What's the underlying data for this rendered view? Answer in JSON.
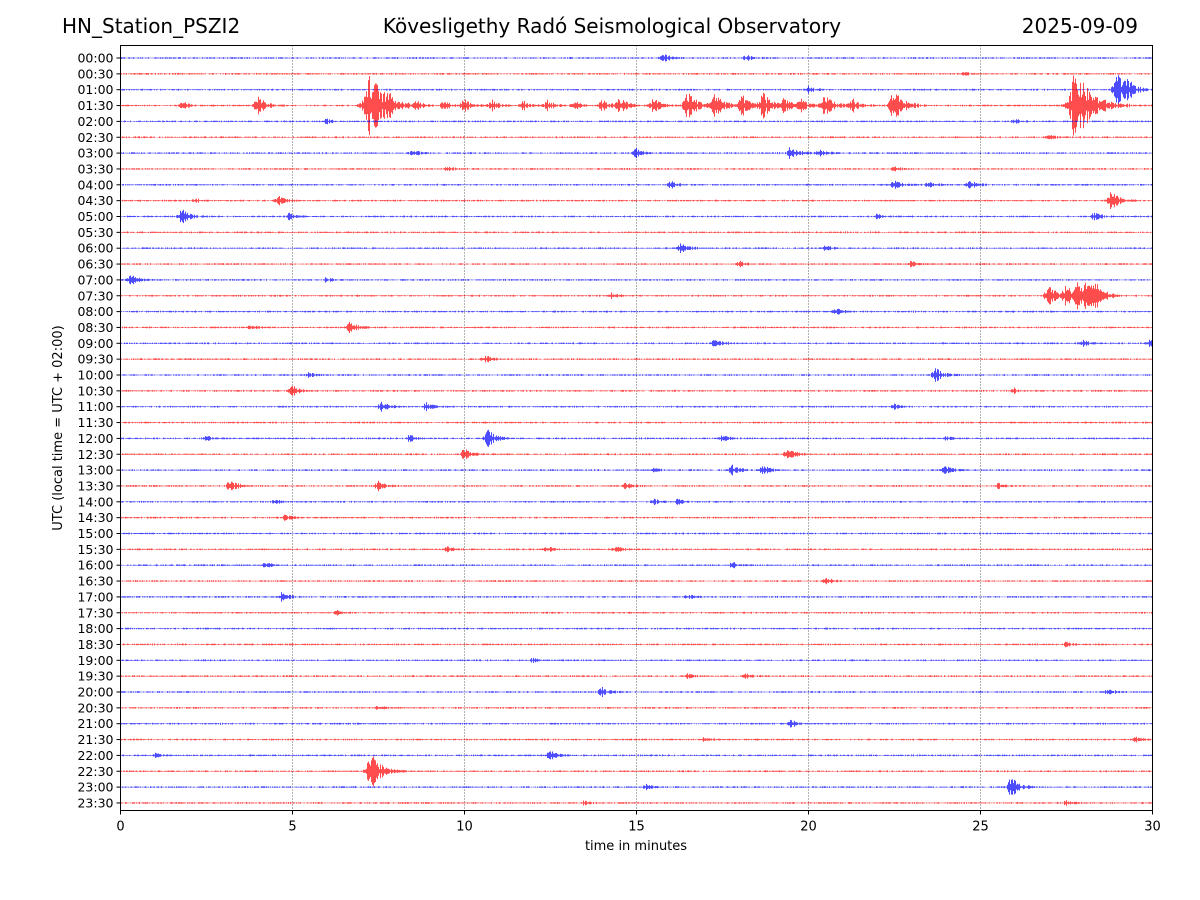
{
  "header": {
    "station": "HN_Station_PSZI2",
    "observatory": "Kövesligethy Radó Seismological Observatory",
    "date": "2025-09-09"
  },
  "chart_data": {
    "type": "line",
    "xlabel": "time in minutes",
    "ylabel": "UTC (local time = UTC + 02:00)",
    "xlim": [
      0,
      30
    ],
    "xticks": [
      "0",
      "5",
      "10",
      "15",
      "20",
      "25",
      "30"
    ],
    "vertical_gridlines_at": [
      5,
      10,
      15,
      20,
      25
    ],
    "row_labels": [
      "00:00",
      "00:30",
      "01:00",
      "01:30",
      "02:00",
      "02:30",
      "03:00",
      "03:30",
      "04:00",
      "04:30",
      "05:00",
      "05:30",
      "06:00",
      "06:30",
      "07:00",
      "07:30",
      "08:00",
      "08:30",
      "09:00",
      "09:30",
      "10:00",
      "10:30",
      "11:00",
      "11:30",
      "12:00",
      "12:30",
      "13:00",
      "13:30",
      "14:00",
      "14:30",
      "15:00",
      "15:30",
      "16:00",
      "16:30",
      "17:00",
      "17:30",
      "18:00",
      "18:30",
      "19:00",
      "19:30",
      "20:00",
      "20:30",
      "21:00",
      "21:30",
      "22:00",
      "22:30",
      "23:00",
      "23:30"
    ],
    "trace_colors": [
      "#0000ff",
      "#ff0000"
    ],
    "events": [
      {
        "row": "00:00",
        "minute": 15.8,
        "amplitude": 0.3
      },
      {
        "row": "00:00",
        "minute": 18.2,
        "amplitude": 0.2
      },
      {
        "row": "00:30",
        "minute": 24.5,
        "amplitude": 0.15
      },
      {
        "row": "01:00",
        "minute": 20.0,
        "amplitude": 0.2
      },
      {
        "row": "01:00",
        "minute": 29.0,
        "amplitude": 0.9
      },
      {
        "row": "01:00",
        "minute": 29.3,
        "amplitude": 0.4
      },
      {
        "row": "01:30",
        "minute": 1.8,
        "amplitude": 0.25
      },
      {
        "row": "01:30",
        "minute": 4.0,
        "amplitude": 0.6
      },
      {
        "row": "01:30",
        "minute": 7.3,
        "amplitude": 2.0
      },
      {
        "row": "01:30",
        "minute": 7.8,
        "amplitude": 0.3
      },
      {
        "row": "01:30",
        "minute": 8.6,
        "amplitude": 0.35
      },
      {
        "row": "01:30",
        "minute": 9.4,
        "amplitude": 0.3
      },
      {
        "row": "01:30",
        "minute": 10.0,
        "amplitude": 0.45
      },
      {
        "row": "01:30",
        "minute": 10.8,
        "amplitude": 0.35
      },
      {
        "row": "01:30",
        "minute": 11.7,
        "amplitude": 0.3
      },
      {
        "row": "01:30",
        "minute": 12.4,
        "amplitude": 0.35
      },
      {
        "row": "01:30",
        "minute": 13.2,
        "amplitude": 0.3
      },
      {
        "row": "01:30",
        "minute": 14.0,
        "amplitude": 0.4
      },
      {
        "row": "01:30",
        "minute": 14.5,
        "amplitude": 0.55
      },
      {
        "row": "01:30",
        "minute": 15.5,
        "amplitude": 0.5
      },
      {
        "row": "01:30",
        "minute": 16.5,
        "amplitude": 0.9
      },
      {
        "row": "01:30",
        "minute": 17.3,
        "amplitude": 0.8
      },
      {
        "row": "01:30",
        "minute": 18.1,
        "amplitude": 0.6
      },
      {
        "row": "01:30",
        "minute": 18.7,
        "amplitude": 0.8
      },
      {
        "row": "01:30",
        "minute": 19.3,
        "amplitude": 0.5
      },
      {
        "row": "01:30",
        "minute": 19.8,
        "amplitude": 0.4
      },
      {
        "row": "01:30",
        "minute": 20.5,
        "amplitude": 0.7
      },
      {
        "row": "01:30",
        "minute": 21.3,
        "amplitude": 0.4
      },
      {
        "row": "01:30",
        "minute": 22.5,
        "amplitude": 1.0
      },
      {
        "row": "01:30",
        "minute": 27.8,
        "amplitude": 2.2
      },
      {
        "row": "02:00",
        "minute": 6.0,
        "amplitude": 0.15
      },
      {
        "row": "02:00",
        "minute": 26.0,
        "amplitude": 0.2
      },
      {
        "row": "02:30",
        "minute": 27.0,
        "amplitude": 0.15
      },
      {
        "row": "03:00",
        "minute": 8.5,
        "amplitude": 0.2
      },
      {
        "row": "03:00",
        "minute": 15.0,
        "amplitude": 0.3
      },
      {
        "row": "03:00",
        "minute": 19.5,
        "amplitude": 0.45
      },
      {
        "row": "03:00",
        "minute": 20.3,
        "amplitude": 0.3
      },
      {
        "row": "03:30",
        "minute": 9.5,
        "amplitude": 0.2
      },
      {
        "row": "03:30",
        "minute": 22.5,
        "amplitude": 0.15
      },
      {
        "row": "04:00",
        "minute": 16.0,
        "amplitude": 0.25
      },
      {
        "row": "04:00",
        "minute": 22.5,
        "amplitude": 0.3
      },
      {
        "row": "04:00",
        "minute": 23.5,
        "amplitude": 0.2
      },
      {
        "row": "04:00",
        "minute": 24.7,
        "amplitude": 0.3
      },
      {
        "row": "04:30",
        "minute": 4.6,
        "amplitude": 0.3
      },
      {
        "row": "04:30",
        "minute": 2.2,
        "amplitude": 0.15
      },
      {
        "row": "04:30",
        "minute": 28.8,
        "amplitude": 0.6
      },
      {
        "row": "05:00",
        "minute": 1.8,
        "amplitude": 0.45
      },
      {
        "row": "05:00",
        "minute": 4.9,
        "amplitude": 0.2
      },
      {
        "row": "05:00",
        "minute": 28.3,
        "amplitude": 0.3
      },
      {
        "row": "05:00",
        "minute": 22.0,
        "amplitude": 0.15
      },
      {
        "row": "06:00",
        "minute": 16.3,
        "amplitude": 0.3
      },
      {
        "row": "06:00",
        "minute": 20.5,
        "amplitude": 0.2
      },
      {
        "row": "06:30",
        "minute": 18.0,
        "amplitude": 0.2
      },
      {
        "row": "06:30",
        "minute": 23.0,
        "amplitude": 0.2
      },
      {
        "row": "07:00",
        "minute": 0.3,
        "amplitude": 0.35
      },
      {
        "row": "07:00",
        "minute": 6.0,
        "amplitude": 0.15
      },
      {
        "row": "07:30",
        "minute": 14.3,
        "amplitude": 0.2
      },
      {
        "row": "07:30",
        "minute": 27.0,
        "amplitude": 0.7
      },
      {
        "row": "07:30",
        "minute": 27.5,
        "amplitude": 0.6
      },
      {
        "row": "07:30",
        "minute": 27.8,
        "amplitude": 0.8
      },
      {
        "row": "07:30",
        "minute": 28.1,
        "amplitude": 0.7
      },
      {
        "row": "07:30",
        "minute": 28.4,
        "amplitude": 0.6
      },
      {
        "row": "08:00",
        "minute": 20.8,
        "amplitude": 0.25
      },
      {
        "row": "08:30",
        "minute": 6.7,
        "amplitude": 0.5
      },
      {
        "row": "08:30",
        "minute": 3.8,
        "amplitude": 0.15
      },
      {
        "row": "09:00",
        "minute": 17.3,
        "amplitude": 0.3
      },
      {
        "row": "09:00",
        "minute": 28.0,
        "amplitude": 0.2
      },
      {
        "row": "09:00",
        "minute": 29.9,
        "amplitude": 0.25
      },
      {
        "row": "09:30",
        "minute": 10.6,
        "amplitude": 0.25
      },
      {
        "row": "10:00",
        "minute": 23.7,
        "amplitude": 0.45
      },
      {
        "row": "10:00",
        "minute": 5.5,
        "amplitude": 0.15
      },
      {
        "row": "10:30",
        "minute": 5.0,
        "amplitude": 0.35
      },
      {
        "row": "10:30",
        "minute": 26.0,
        "amplitude": 0.15
      },
      {
        "row": "11:00",
        "minute": 7.6,
        "amplitude": 0.35
      },
      {
        "row": "11:00",
        "minute": 8.9,
        "amplitude": 0.35
      },
      {
        "row": "11:00",
        "minute": 22.5,
        "amplitude": 0.15
      },
      {
        "row": "12:00",
        "minute": 10.7,
        "amplitude": 0.55
      },
      {
        "row": "12:00",
        "minute": 8.4,
        "amplitude": 0.25
      },
      {
        "row": "12:00",
        "minute": 2.5,
        "amplitude": 0.15
      },
      {
        "row": "12:00",
        "minute": 17.5,
        "amplitude": 0.2
      },
      {
        "row": "12:00",
        "minute": 24.0,
        "amplitude": 0.15
      },
      {
        "row": "12:30",
        "minute": 10.0,
        "amplitude": 0.35
      },
      {
        "row": "12:30",
        "minute": 19.4,
        "amplitude": 0.4
      },
      {
        "row": "13:00",
        "minute": 17.8,
        "amplitude": 0.3
      },
      {
        "row": "13:00",
        "minute": 18.7,
        "amplitude": 0.35
      },
      {
        "row": "13:00",
        "minute": 24.0,
        "amplitude": 0.3
      },
      {
        "row": "13:00",
        "minute": 15.5,
        "amplitude": 0.15
      },
      {
        "row": "13:30",
        "minute": 3.2,
        "amplitude": 0.4
      },
      {
        "row": "13:30",
        "minute": 7.5,
        "amplitude": 0.3
      },
      {
        "row": "13:30",
        "minute": 14.7,
        "amplitude": 0.2
      },
      {
        "row": "13:30",
        "minute": 25.5,
        "amplitude": 0.2
      },
      {
        "row": "14:00",
        "minute": 15.5,
        "amplitude": 0.2
      },
      {
        "row": "14:00",
        "minute": 16.2,
        "amplitude": 0.2
      },
      {
        "row": "14:00",
        "minute": 4.5,
        "amplitude": 0.15
      },
      {
        "row": "14:30",
        "minute": 4.8,
        "amplitude": 0.2
      },
      {
        "row": "15:30",
        "minute": 9.5,
        "amplitude": 0.2
      },
      {
        "row": "15:30",
        "minute": 12.4,
        "amplitude": 0.2
      },
      {
        "row": "15:30",
        "minute": 14.4,
        "amplitude": 0.2
      },
      {
        "row": "16:00",
        "minute": 4.2,
        "amplitude": 0.2
      },
      {
        "row": "16:00",
        "minute": 17.8,
        "amplitude": 0.2
      },
      {
        "row": "16:30",
        "minute": 20.5,
        "amplitude": 0.25
      },
      {
        "row": "17:00",
        "minute": 4.7,
        "amplitude": 0.3
      },
      {
        "row": "17:00",
        "minute": 16.5,
        "amplitude": 0.15
      },
      {
        "row": "17:30",
        "minute": 6.3,
        "amplitude": 0.15
      },
      {
        "row": "18:30",
        "minute": 27.5,
        "amplitude": 0.15
      },
      {
        "row": "19:00",
        "minute": 12.0,
        "amplitude": 0.15
      },
      {
        "row": "19:30",
        "minute": 16.5,
        "amplitude": 0.15
      },
      {
        "row": "19:30",
        "minute": 18.2,
        "amplitude": 0.15
      },
      {
        "row": "20:00",
        "minute": 14.0,
        "amplitude": 0.3
      },
      {
        "row": "20:00",
        "minute": 28.7,
        "amplitude": 0.2
      },
      {
        "row": "20:30",
        "minute": 7.5,
        "amplitude": 0.15
      },
      {
        "row": "21:00",
        "minute": 19.5,
        "amplitude": 0.25
      },
      {
        "row": "21:30",
        "minute": 17.0,
        "amplitude": 0.2
      },
      {
        "row": "21:30",
        "minute": 29.5,
        "amplitude": 0.25
      },
      {
        "row": "22:00",
        "minute": 12.5,
        "amplitude": 0.3
      },
      {
        "row": "22:00",
        "minute": 1.0,
        "amplitude": 0.15
      },
      {
        "row": "22:30",
        "minute": 7.3,
        "amplitude": 1.1
      },
      {
        "row": "23:00",
        "minute": 25.9,
        "amplitude": 0.6
      },
      {
        "row": "23:00",
        "minute": 15.3,
        "amplitude": 0.2
      },
      {
        "row": "23:30",
        "minute": 13.5,
        "amplitude": 0.15
      },
      {
        "row": "23:30",
        "minute": 27.5,
        "amplitude": 0.15
      }
    ]
  }
}
